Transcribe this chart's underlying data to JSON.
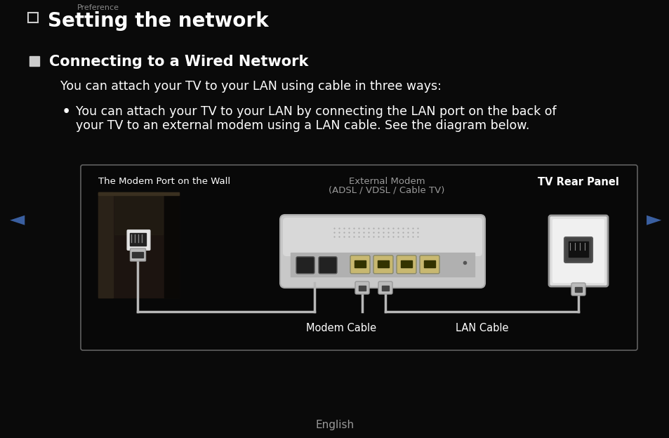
{
  "background_color": "#0a0a0a",
  "title": "Setting the network",
  "section_title": "Connecting to a Wired Network",
  "body_text1": "You can attach your TV to your LAN using cable in three ways:",
  "bullet_text1_line1": "You can attach your TV to your LAN by connecting the LAN port on the back of",
  "bullet_text1_line2": "your TV to an external modem using a LAN cable. See the diagram below.",
  "diagram_label_wall": "The Modem Port on the Wall",
  "diagram_label_modem": "External Modem",
  "diagram_label_modem2": "(ADSL / VDSL / Cable TV)",
  "diagram_label_tv": "TV Rear Panel",
  "diagram_label_modem_cable": "Modem Cable",
  "diagram_label_lan_cable": "LAN Cable",
  "nav_left": "◄",
  "nav_right": "►",
  "footer_text": "English",
  "text_color": "#ffffff",
  "text_color_dim": "#cccccc",
  "text_color_gray": "#999999",
  "nav_color": "#3a5fa0",
  "title_fontsize": 20,
  "section_fontsize": 15,
  "body_fontsize": 12.5,
  "diagram_label_fontsize": 9.5,
  "footer_fontsize": 11
}
